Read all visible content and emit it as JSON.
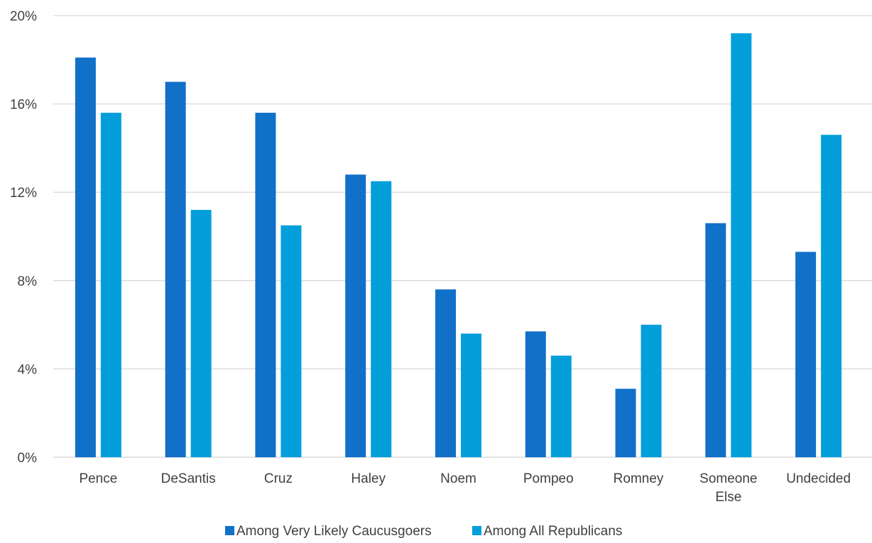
{
  "chart_data": {
    "type": "bar",
    "categories": [
      [
        "Pence"
      ],
      [
        "DeSantis"
      ],
      [
        "Cruz"
      ],
      [
        "Haley"
      ],
      [
        "Noem"
      ],
      [
        "Pompeo"
      ],
      [
        "Romney"
      ],
      [
        "Someone",
        "Else"
      ],
      [
        "Undecided"
      ]
    ],
    "series": [
      {
        "name": "Among Very Likely Caucusgoers",
        "color": "#1170C8",
        "values": [
          18.1,
          17.0,
          15.6,
          12.8,
          7.6,
          5.7,
          3.1,
          10.6,
          9.3
        ]
      },
      {
        "name": "Among All Republicans",
        "color": "#039FDB",
        "values": [
          15.6,
          11.2,
          10.5,
          12.5,
          5.6,
          4.6,
          6.0,
          19.2,
          14.6
        ]
      }
    ],
    "ylim": [
      0,
      20
    ],
    "yticks": [
      "0%",
      "4%",
      "8%",
      "12%",
      "16%",
      "20%"
    ],
    "ytick_values": [
      0,
      4,
      8,
      12,
      16,
      20
    ],
    "grid": true,
    "legend_position": "bottom"
  }
}
